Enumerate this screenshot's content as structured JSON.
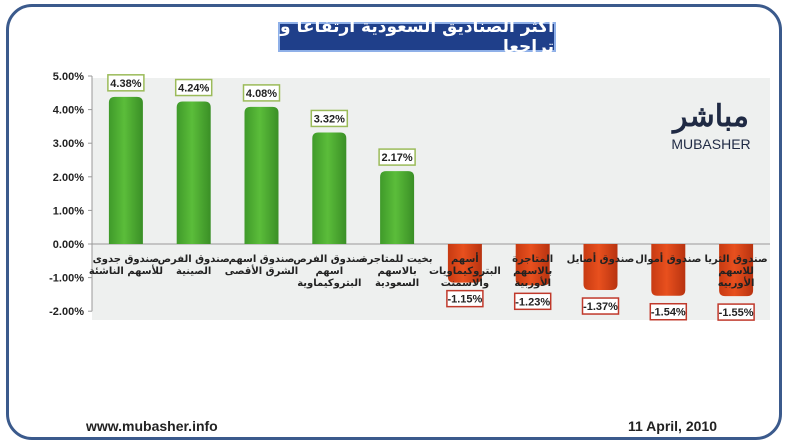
{
  "title": "أكثر الصناديق السعودية ارتفاعا و تراجعا",
  "logo": {
    "arabic": "مباشر",
    "latin": "MUBASHER"
  },
  "footer": {
    "url": "www.mubasher.info",
    "date": "11 April, 2010"
  },
  "colors": {
    "positive": "#5bbd3a",
    "negative": "#e8501e",
    "positive_label_border": "#9bbb59",
    "negative_label_border": "#c0392b",
    "title_bg": "#1f3f8a",
    "frame": "#3b5a8c"
  },
  "chart_data": {
    "type": "bar",
    "title": "أكثر الصناديق السعودية ارتفاعا و تراجعا",
    "ylim": [
      -2,
      5
    ],
    "yticks": [
      "5.00%",
      "4.00%",
      "3.00%",
      "2.00%",
      "1.00%",
      "0.00%",
      "-1.00%",
      "-2.00%"
    ],
    "ytick_values": [
      5,
      4,
      3,
      2,
      1,
      0,
      -1,
      -2
    ],
    "grid": false,
    "categories": [
      [
        "صندوق جدوى",
        "للأسهم الناشئة"
      ],
      [
        "صندوق الفرص",
        "الصينية"
      ],
      [
        "صندوق اسهم",
        "الشرق الأقصى"
      ],
      [
        "صندوق الفرص",
        "اسهم",
        "البتروكيماوية"
      ],
      [
        "بخيت للمتاجرة",
        "بالاسهم",
        "السعودية"
      ],
      [
        "أسهم",
        "البتروكيماويات",
        "والاسمنت"
      ],
      [
        "المتاجرة",
        "بالاسهم",
        "الأوربية"
      ],
      [
        "صندوق أصايل"
      ],
      [
        "صندوق أموال"
      ],
      [
        "صندوق الثريا",
        "للاسهم",
        "الأوربيه"
      ]
    ],
    "values": [
      4.38,
      4.24,
      4.08,
      3.32,
      2.17,
      -1.15,
      -1.23,
      -1.37,
      -1.54,
      -1.55
    ],
    "data_labels": [
      "4.38%",
      "4.24%",
      "4.08%",
      "3.32%",
      "2.17%",
      "-1.15%",
      "-1.23%",
      "-1.37%",
      "-1.54%",
      "-1.55%"
    ]
  }
}
